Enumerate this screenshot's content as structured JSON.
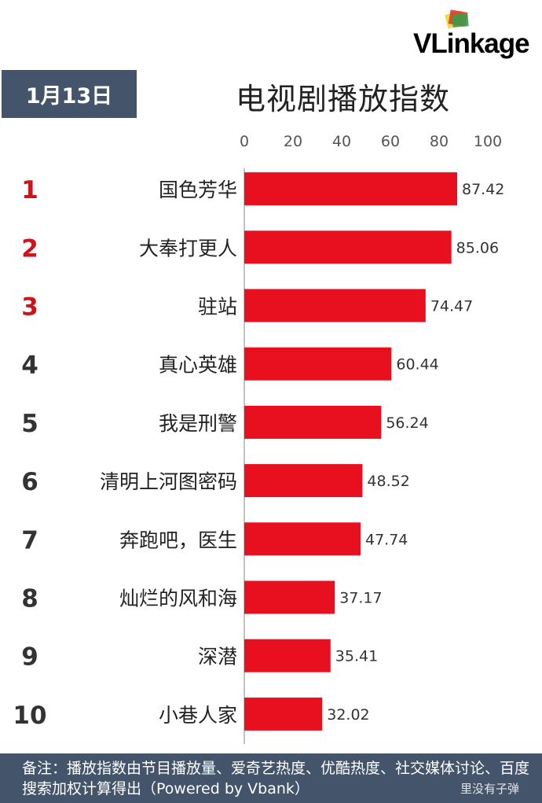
{
  "brand": {
    "logo_text": "VLinkage"
  },
  "header": {
    "date": "1月13日",
    "title": "电视剧播放指数"
  },
  "chart_data": {
    "type": "bar",
    "orientation": "horizontal",
    "title": "电视剧播放指数",
    "xlim": [
      0,
      100
    ],
    "ticks": [
      0,
      20,
      40,
      60,
      80,
      100
    ],
    "ranks": [
      "1",
      "2",
      "3",
      "4",
      "5",
      "6",
      "7",
      "8",
      "9",
      "10"
    ],
    "categories": [
      "国色芳华",
      "大奉打更人",
      "驻站",
      "真心英雄",
      "我是刑警",
      "清明上河图密码",
      "奔跑吧，医生",
      "灿烂的风和海",
      "深潜",
      "小巷人家"
    ],
    "values": [
      87.42,
      85.06,
      74.47,
      60.44,
      56.24,
      48.52,
      47.74,
      37.17,
      35.41,
      32.02
    ],
    "value_labels": [
      "87.42",
      "85.06",
      "74.47",
      "60.44",
      "56.24",
      "48.52",
      "47.74",
      "37.17",
      "35.41",
      "32.02"
    ],
    "bar_color": "#e8101f",
    "top_rank_color": "#d0121b",
    "rank_color": "#333333",
    "grid": false,
    "legend": "none"
  },
  "footer": {
    "note": "备注：播放指数由节目播放量、爱奇艺热度、优酷热度、社交媒体讨论、百度搜索加权计算得出（Powered by Vbank）"
  },
  "watermark": {
    "text": "里没有子弹"
  }
}
